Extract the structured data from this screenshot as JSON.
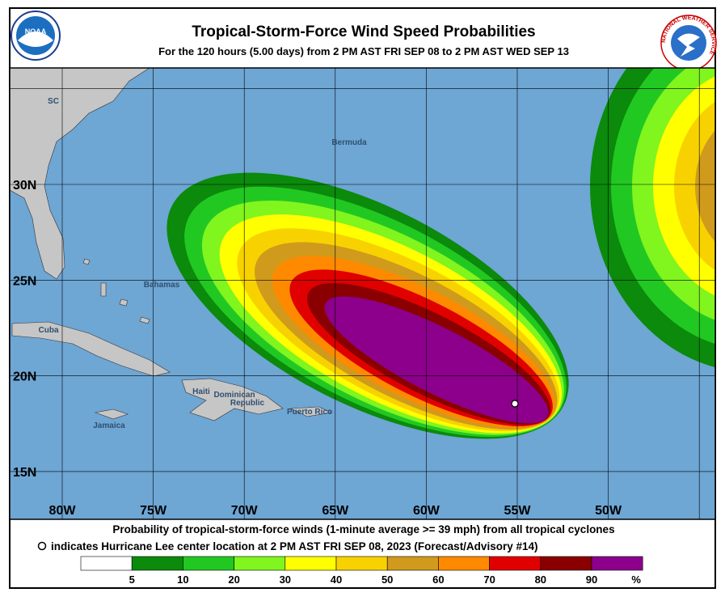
{
  "header": {
    "title": "Tropical-Storm-Force Wind Speed Probabilities",
    "subtitle": "For the 120 hours (5.00 days) from 2 PM AST FRI SEP 08 to 2 PM AST WED SEP 13"
  },
  "logos": {
    "noaa": "NOAA",
    "nws": "NATIONAL WEATHER SERVICE"
  },
  "map": {
    "places": [
      "SC",
      "Bermuda",
      "Bahamas",
      "Cuba",
      "Haiti",
      "Dominican",
      "Republic",
      "Jamaica",
      "Puerto Rico"
    ],
    "latitudes": [
      "30N",
      "25N",
      "20N",
      "15N"
    ],
    "longitudes": [
      "80W",
      "75W",
      "70W",
      "65W",
      "60W",
      "55W",
      "50W"
    ]
  },
  "footer": {
    "line1": "Probability of tropical-storm-force winds (1-minute average >= 39 mph) from all tropical cyclones",
    "line2": "indicates Hurricane Lee center location at 2 PM AST FRI SEP 08, 2023 (Forecast/Advisory #14)"
  },
  "legend": {
    "bins": [
      5,
      10,
      20,
      30,
      40,
      50,
      60,
      70,
      80,
      90
    ],
    "unit": "%",
    "colors": [
      "#ffffff",
      "#0b8a0b",
      "#22c822",
      "#80f51e",
      "#ffff00",
      "#f7d200",
      "#d09a1c",
      "#ff8a00",
      "#e00000",
      "#8a0000",
      "#8c008c"
    ]
  }
}
